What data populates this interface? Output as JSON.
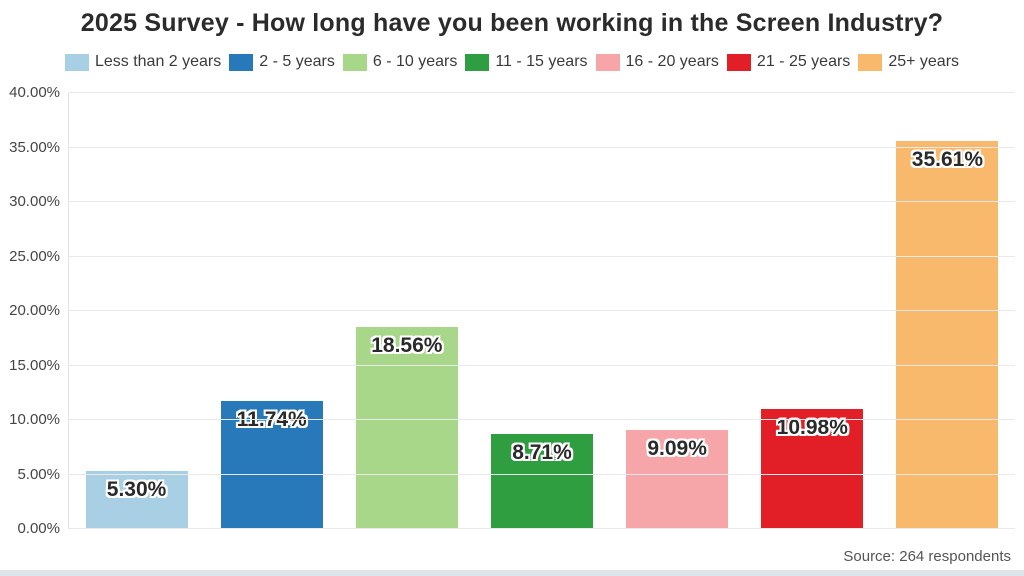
{
  "page": {
    "title": "2025 Survey - How long have you been working in the Screen Industry?",
    "source": "Source: 264 respondents"
  },
  "chart_data": {
    "type": "bar",
    "title": "2025 Survey - How long have you been working in the Screen Industry?",
    "categories": [
      "Less than 2 years",
      "2 - 5 years",
      "6 - 10 years",
      "11 - 15 years",
      "16 - 20 years",
      "21 - 25 years",
      "25+ years"
    ],
    "values": [
      5.3,
      11.74,
      18.56,
      8.71,
      9.09,
      10.98,
      35.61
    ],
    "value_labels": [
      "5.30%",
      "11.74%",
      "18.56%",
      "8.71%",
      "9.09%",
      "10.98%",
      "35.61%"
    ],
    "bar_colors": [
      "#a9cfe5",
      "#2879b9",
      "#a8d789",
      "#2f9e41",
      "#f6a6a9",
      "#e21f26",
      "#f8b96d"
    ],
    "xlabel": "",
    "ylabel": "",
    "ylim": [
      0,
      40
    ],
    "ytick_step": 5,
    "ytick_labels": [
      "0.00%",
      "5.00%",
      "10.00%",
      "15.00%",
      "20.00%",
      "25.00%",
      "30.00%",
      "35.00%",
      "40.00%"
    ],
    "grid": true,
    "legend_position": "top",
    "annotations": [
      "Source: 264 respondents"
    ]
  }
}
